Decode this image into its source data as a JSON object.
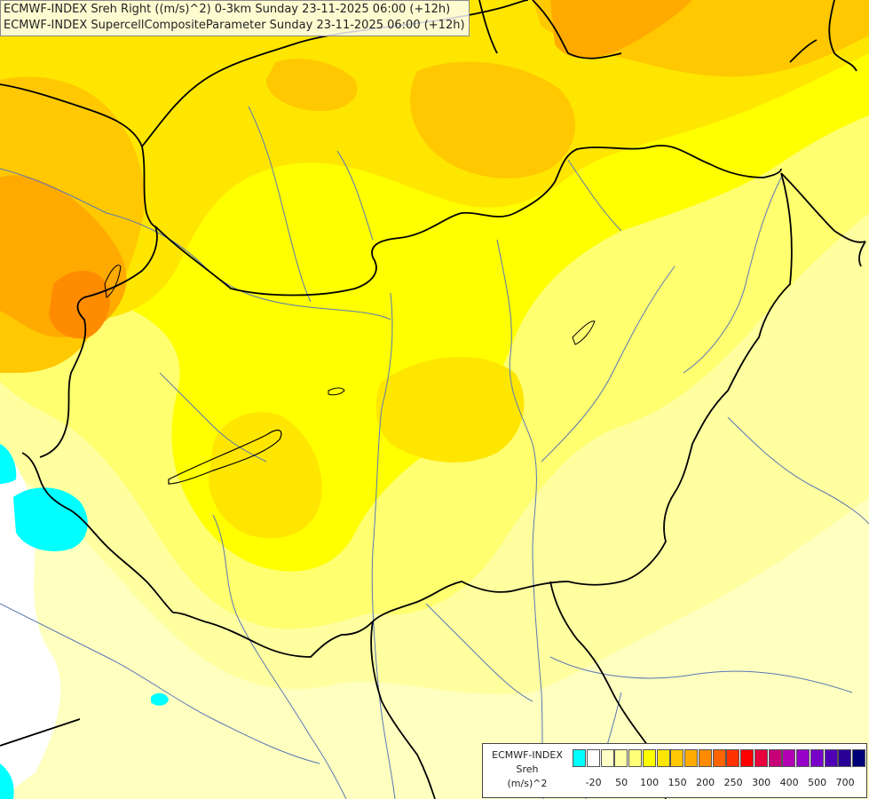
{
  "header": {
    "line1": "ECMWF-INDEX Sreh Right ((m/s)^2) 0-3km Sunday 23-11-2025 06:00 (+12h)",
    "line2": "ECMWF-INDEX SupercellCompositeParameter Sunday 23-11-2025 06:00 (+12h)"
  },
  "legend": {
    "model": "ECMWF-INDEX",
    "variable": "Sreh",
    "unit": "(m/s)^2",
    "colors": [
      "#00ffff",
      "#ffffff",
      "#ffffc8",
      "#ffffa8",
      "#ffff78",
      "#ffff00",
      "#ffe600",
      "#ffc800",
      "#ffaa00",
      "#ff8c00",
      "#ff6400",
      "#ff3200",
      "#ff0000",
      "#e6003c",
      "#c80078",
      "#b400b4",
      "#9600c8",
      "#7800c8",
      "#5000b4",
      "#280096",
      "#000078"
    ],
    "ticks": [
      "-20",
      "50",
      "100",
      "150",
      "200",
      "250",
      "300",
      "400",
      "500",
      "700"
    ]
  },
  "map": {
    "field_colors": {
      "base": "#ffffc0",
      "pale": "#ffffa0",
      "light": "#ffff70",
      "yellow": "#ffff00",
      "gold": "#ffe600",
      "amber": "#ffc800",
      "orange": "#ffaa00",
      "deep_orange": "#ff8c00",
      "cyan": "#00ffff",
      "white": "#ffffff"
    },
    "border_color": "#000000",
    "river_color": "#5a78b4"
  }
}
